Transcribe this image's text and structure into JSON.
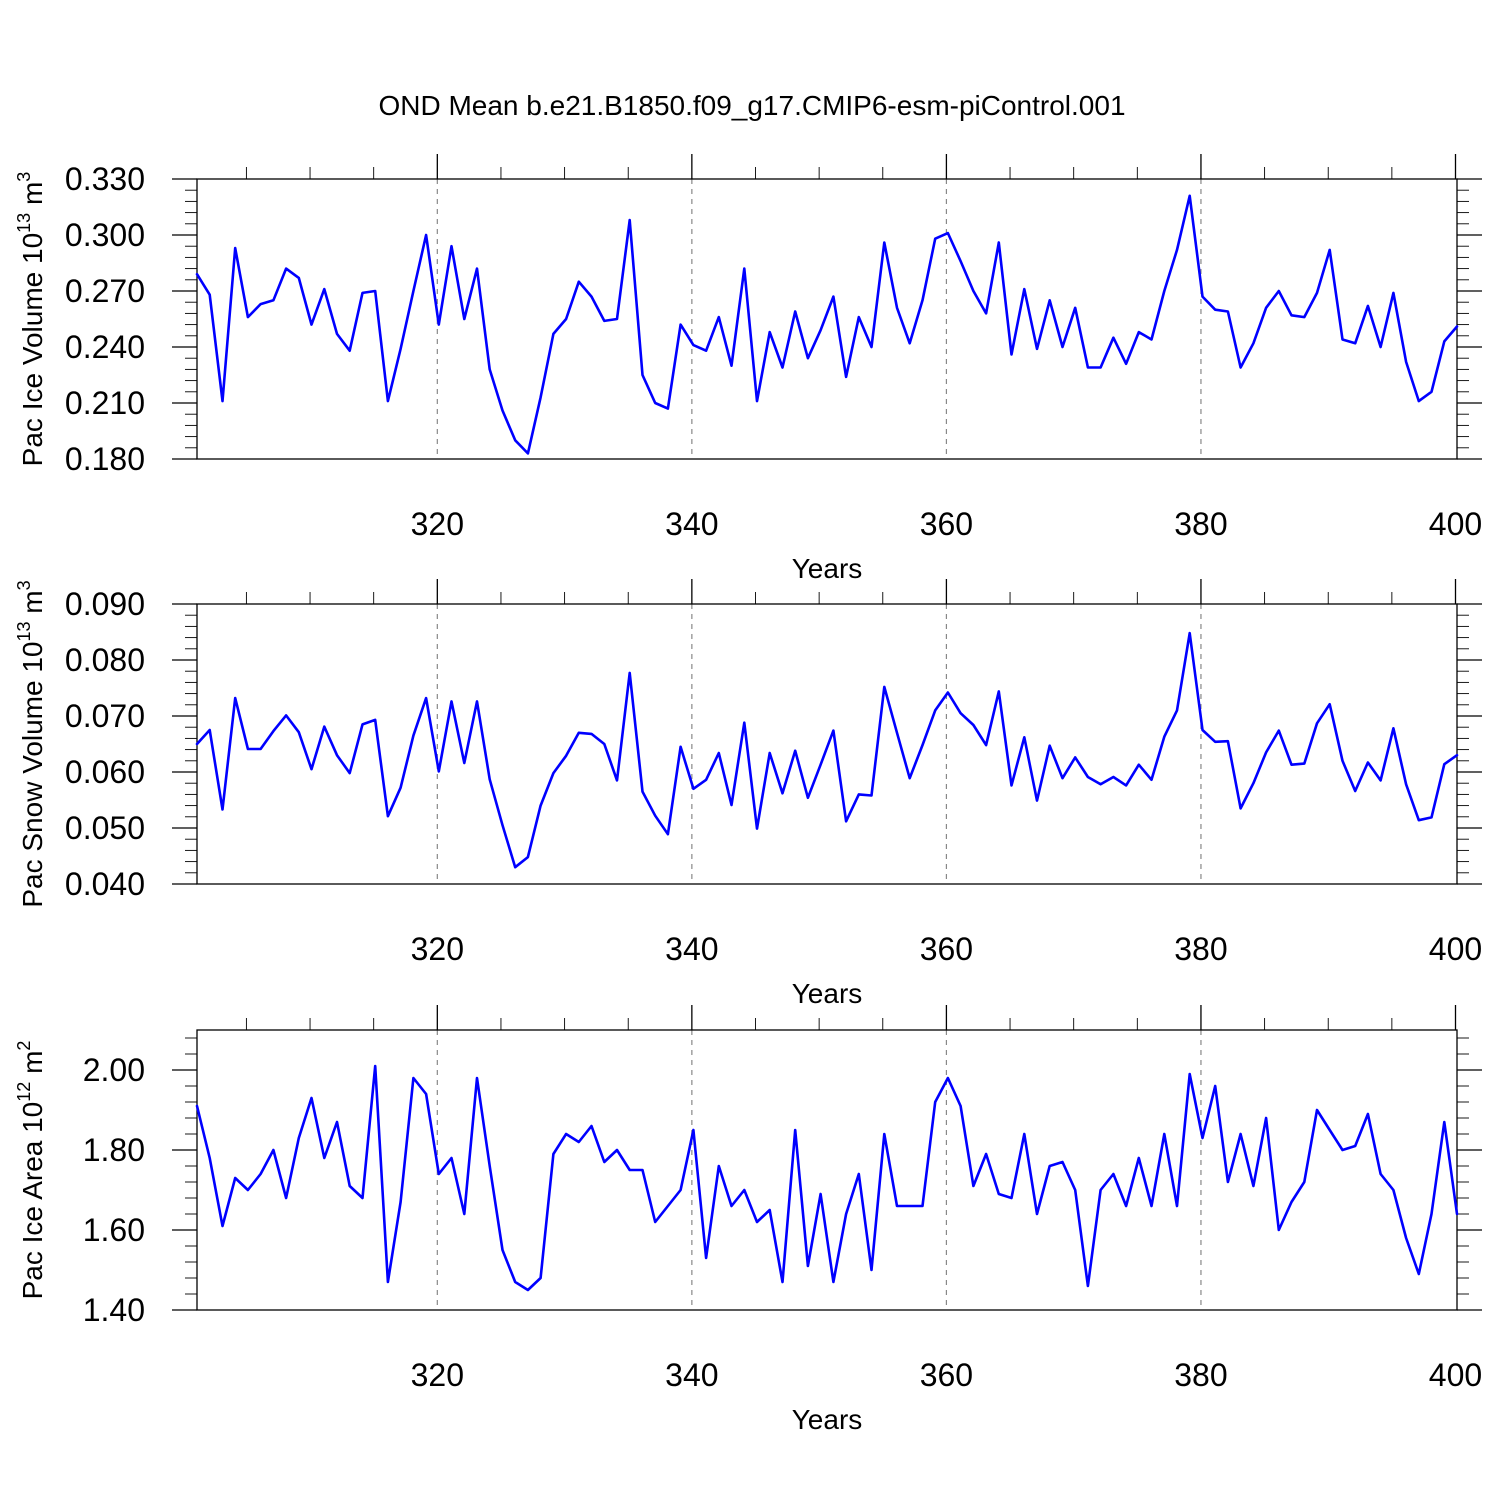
{
  "title": "OND Mean b.e21.B1850.f09_g17.CMIP6-esm-piControl.001",
  "line_color": "#0000ff",
  "chart_data": [
    {
      "type": "line",
      "ylabel": "Pac Ice Volume 10",
      "ylabel_exp": "13",
      "ylabel_unit": " m",
      "ylabel_unit_exp": "3",
      "xlabel": "Years",
      "xlim": [
        301,
        400
      ],
      "ylim": [
        0.18,
        0.33
      ],
      "xticks": [
        320,
        340,
        360,
        380,
        400
      ],
      "xtick_labels": [
        "320",
        "340",
        "360",
        "380",
        "400"
      ],
      "yticks": [
        0.18,
        0.21,
        0.24,
        0.27,
        0.3,
        0.33
      ],
      "ytick_labels": [
        "0.180",
        "0.210",
        "0.240",
        "0.270",
        "0.300",
        "0.330"
      ],
      "grid_x": true,
      "x_start": 301,
      "values": [
        0.279,
        0.268,
        0.211,
        0.293,
        0.256,
        0.263,
        0.265,
        0.282,
        0.277,
        0.252,
        0.271,
        0.247,
        0.238,
        0.269,
        0.27,
        0.211,
        0.239,
        0.27,
        0.3,
        0.252,
        0.294,
        0.255,
        0.282,
        0.228,
        0.206,
        0.19,
        0.183,
        0.213,
        0.247,
        0.255,
        0.275,
        0.267,
        0.254,
        0.255,
        0.308,
        0.225,
        0.21,
        0.207,
        0.252,
        0.241,
        0.238,
        0.256,
        0.23,
        0.282,
        0.211,
        0.248,
        0.229,
        0.259,
        0.234,
        0.249,
        0.267,
        0.224,
        0.256,
        0.24,
        0.296,
        0.261,
        0.242,
        0.265,
        0.298,
        0.301,
        0.286,
        0.27,
        0.258,
        0.296,
        0.236,
        0.271,
        0.239,
        0.265,
        0.24,
        0.261,
        0.229,
        0.229,
        0.245,
        0.231,
        0.248,
        0.244,
        0.27,
        0.292,
        0.321,
        0.267,
        0.26,
        0.259,
        0.229,
        0.242,
        0.261,
        0.27,
        0.257,
        0.256,
        0.269,
        0.292,
        0.244,
        0.242,
        0.262,
        0.24,
        0.269,
        0.232,
        0.211,
        0.216,
        0.243,
        0.251
      ]
    },
    {
      "type": "line",
      "ylabel": "Pac Snow Volume 10",
      "ylabel_exp": "13",
      "ylabel_unit": " m",
      "ylabel_unit_exp": "3",
      "xlabel": "Years",
      "xlim": [
        301,
        400
      ],
      "ylim": [
        0.04,
        0.09
      ],
      "xticks": [
        320,
        340,
        360,
        380,
        400
      ],
      "xtick_labels": [
        "320",
        "340",
        "360",
        "380",
        "400"
      ],
      "yticks": [
        0.04,
        0.05,
        0.06,
        0.07,
        0.08,
        0.09
      ],
      "ytick_labels": [
        "0.040",
        "0.050",
        "0.060",
        "0.070",
        "0.080",
        "0.090"
      ],
      "grid_x": true,
      "x_start": 301,
      "values": [
        0.065,
        0.0675,
        0.0533,
        0.0732,
        0.0641,
        0.0641,
        0.0673,
        0.0701,
        0.0671,
        0.0605,
        0.0681,
        0.063,
        0.0598,
        0.0685,
        0.0693,
        0.0521,
        0.0572,
        0.0665,
        0.0732,
        0.0601,
        0.0726,
        0.0616,
        0.0726,
        0.0587,
        0.0505,
        0.043,
        0.0448,
        0.054,
        0.0598,
        0.0629,
        0.067,
        0.0668,
        0.065,
        0.0585,
        0.0777,
        0.0565,
        0.0522,
        0.0489,
        0.0645,
        0.057,
        0.0586,
        0.0634,
        0.0541,
        0.0688,
        0.0499,
        0.0634,
        0.0562,
        0.0638,
        0.0554,
        0.0613,
        0.0674,
        0.0512,
        0.056,
        0.0558,
        0.0752,
        0.067,
        0.0589,
        0.0648,
        0.071,
        0.0742,
        0.0705,
        0.0684,
        0.0648,
        0.0744,
        0.0576,
        0.0662,
        0.0549,
        0.0647,
        0.0589,
        0.0626,
        0.0591,
        0.0578,
        0.0591,
        0.0576,
        0.0613,
        0.0586,
        0.0663,
        0.071,
        0.0848,
        0.0675,
        0.0654,
        0.0655,
        0.0535,
        0.058,
        0.0635,
        0.0674,
        0.0613,
        0.0615,
        0.0687,
        0.0721,
        0.062,
        0.0566,
        0.0617,
        0.0585,
        0.0678,
        0.0578,
        0.0514,
        0.0519,
        0.0614,
        0.063
      ]
    },
    {
      "type": "line",
      "ylabel": "Pac Ice Area 10",
      "ylabel_exp": "12",
      "ylabel_unit": " m",
      "ylabel_unit_exp": "2",
      "xlabel": "Years",
      "xlim": [
        301,
        400
      ],
      "ylim": [
        1.4,
        2.1
      ],
      "xticks": [
        320,
        340,
        360,
        380,
        400
      ],
      "xtick_labels": [
        "320",
        "340",
        "360",
        "380",
        "400"
      ],
      "yticks": [
        1.4,
        1.6,
        1.8,
        2.0
      ],
      "ytick_labels": [
        "1.40",
        "1.60",
        "1.80",
        "2.00"
      ],
      "grid_x": true,
      "x_start": 301,
      "values": [
        1.91,
        1.78,
        1.61,
        1.73,
        1.7,
        1.74,
        1.8,
        1.68,
        1.83,
        1.93,
        1.78,
        1.87,
        1.71,
        1.68,
        2.01,
        1.47,
        1.67,
        1.98,
        1.94,
        1.74,
        1.78,
        1.64,
        1.98,
        1.76,
        1.55,
        1.47,
        1.45,
        1.48,
        1.79,
        1.84,
        1.82,
        1.86,
        1.77,
        1.8,
        1.75,
        1.75,
        1.62,
        1.66,
        1.7,
        1.85,
        1.53,
        1.76,
        1.66,
        1.7,
        1.62,
        1.65,
        1.47,
        1.85,
        1.51,
        1.69,
        1.47,
        1.64,
        1.74,
        1.5,
        1.84,
        1.66,
        1.66,
        1.66,
        1.92,
        1.98,
        1.91,
        1.71,
        1.79,
        1.69,
        1.68,
        1.84,
        1.64,
        1.76,
        1.77,
        1.7,
        1.46,
        1.7,
        1.74,
        1.66,
        1.78,
        1.66,
        1.84,
        1.66,
        1.99,
        1.83,
        1.96,
        1.72,
        1.84,
        1.71,
        1.88,
        1.6,
        1.67,
        1.72,
        1.9,
        1.85,
        1.8,
        1.81,
        1.89,
        1.74,
        1.7,
        1.58,
        1.49,
        1.64,
        1.87,
        1.64
      ]
    }
  ]
}
